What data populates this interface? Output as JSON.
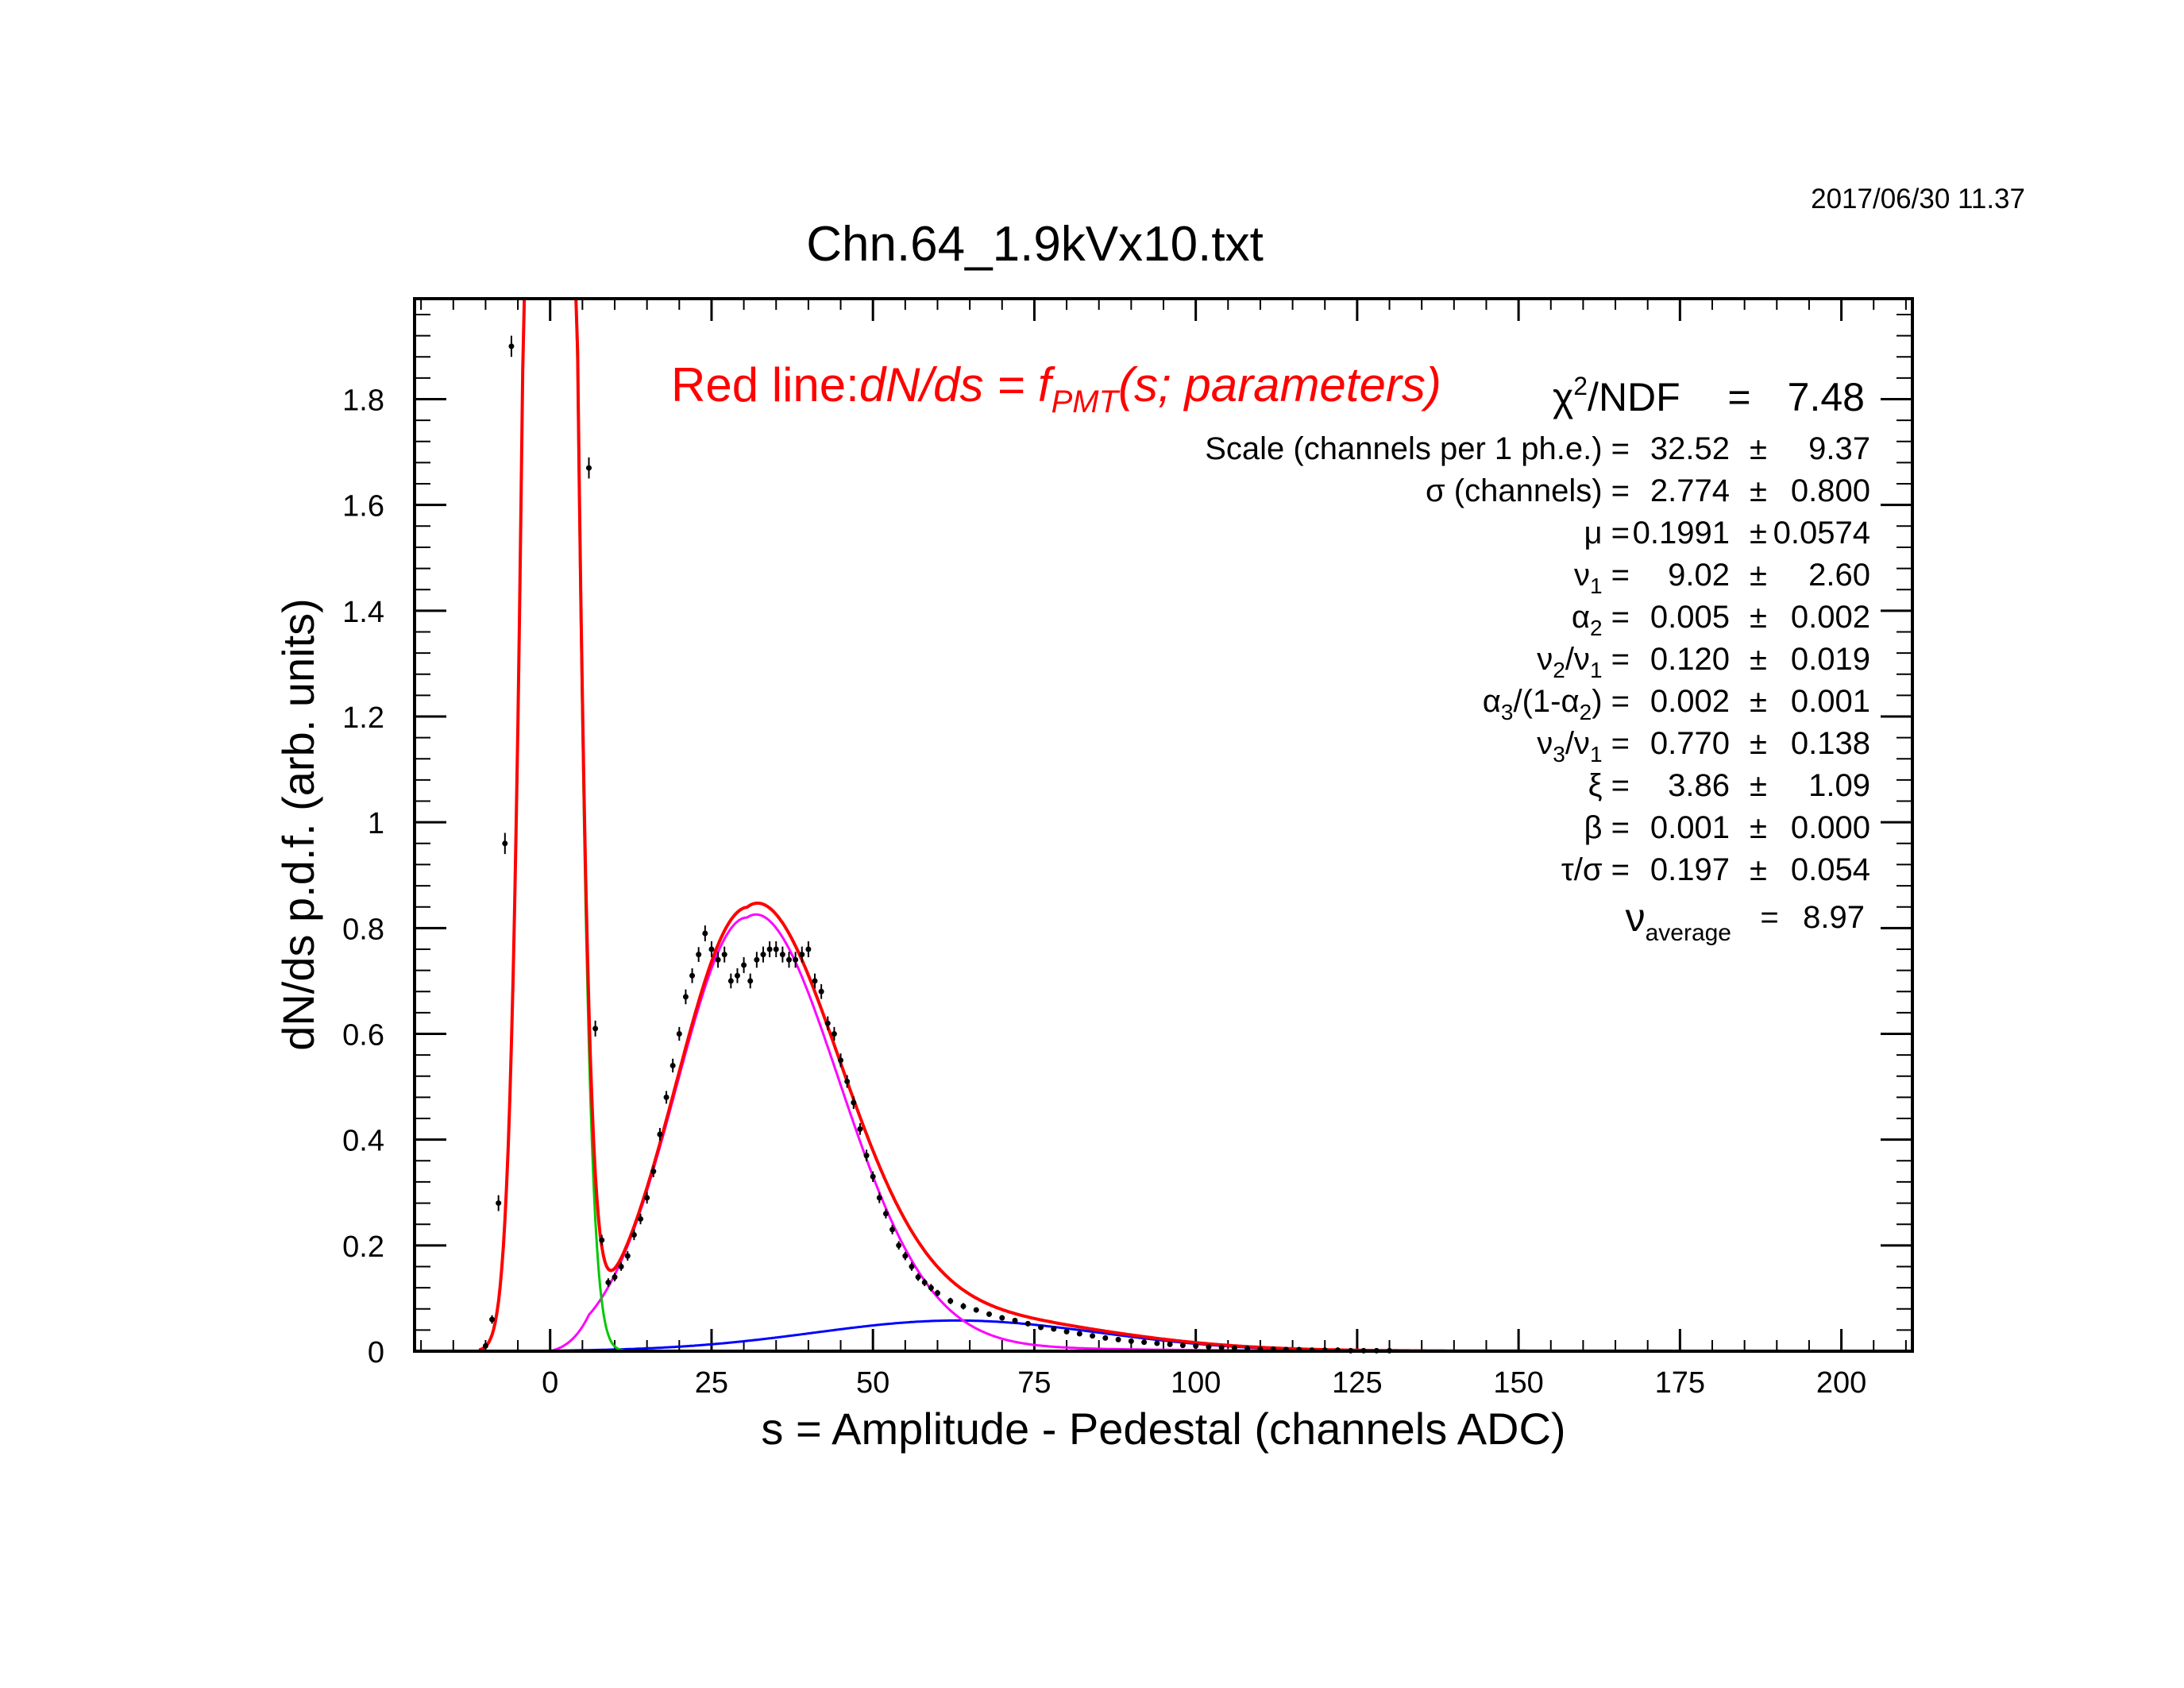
{
  "datestamp": "2017/06/30   11.37",
  "chart_data": {
    "type": "scatter",
    "title": "Chn.64_1.9kVx10.txt",
    "xlabel": "s = Amplitude - Pedestal (channels ADC)",
    "ylabel": "dN/ds p.d.f. (arb. units)",
    "xlim": [
      -21,
      211
    ],
    "ylim": [
      0,
      1.99
    ],
    "x_ticks": [
      "0",
      "25",
      "50",
      "75",
      "100",
      "125",
      "150",
      "175",
      "200"
    ],
    "y_ticks": [
      "0",
      "0.2",
      "0.4",
      "0.6",
      "0.8",
      "1",
      "1.2",
      "1.4",
      "1.6",
      "1.8"
    ],
    "grid": false,
    "legend_text": {
      "plain": "Red line:",
      "eq_lhs": "dN/ds = f",
      "eq_sub": "PMT",
      "eq_rhs": "(s; parameters)"
    },
    "chi2": {
      "label": "/NDF",
      "symbol": "χ",
      "sup": "2",
      "eq": "=",
      "value": "7.48"
    },
    "fit_parameters": [
      {
        "name": "Scale (channels per 1 ph.e.) =",
        "value": "32.52",
        "pm": "±",
        "error": "9.37"
      },
      {
        "name": "σ (channels) =",
        "value": "2.774",
        "pm": "±",
        "error": "0.800"
      },
      {
        "name": "μ  =",
        "value": "0.1991",
        "pm": "±",
        "error": "0.0574"
      },
      {
        "name": "ν",
        "sub": "1",
        "tail": " =",
        "value": "9.02",
        "pm": "±",
        "error": "2.60"
      },
      {
        "name": "α",
        "sub": "2",
        "tail": " =",
        "value": "0.005",
        "pm": "±",
        "error": "0.002"
      },
      {
        "name": "ν",
        "sub": "2",
        "mid": "/ν",
        "sub2": "1",
        "tail": " =",
        "value": "0.120",
        "pm": "±",
        "error": "0.019"
      },
      {
        "name": "α",
        "sub": "3",
        "mid": "/(1-α",
        "sub2": "2",
        "tail": ") =",
        "value": "0.002",
        "pm": "±",
        "error": "0.001"
      },
      {
        "name": "ν",
        "sub": "3",
        "mid": "/ν",
        "sub2": "1",
        "tail": " =",
        "value": "0.770",
        "pm": "±",
        "error": "0.138"
      },
      {
        "name": "ξ  =",
        "value": "3.86",
        "pm": "±",
        "error": "1.09"
      },
      {
        "name": "β  =",
        "value": "0.001",
        "pm": "±",
        "error": "0.000"
      },
      {
        "name": "τ/σ =",
        "value": "0.197",
        "pm": "±",
        "error": "0.054"
      }
    ],
    "nu_average": {
      "symbol": "ν",
      "sub": "average",
      "eq": "=",
      "value": "8.97"
    },
    "colors": {
      "total_fit": "#ff0000",
      "pedestal": "#00c800",
      "one_pe": "#ff00ff",
      "multi_pe": "#0000ff",
      "data": "#000000"
    },
    "series": [
      {
        "type": "scatter_errorbars",
        "x": [
          -10,
          -9,
          -8,
          -7,
          -6,
          6,
          7,
          8,
          9,
          10,
          11,
          12,
          13,
          14,
          15,
          16,
          17,
          18,
          19,
          20,
          21,
          22,
          23,
          24,
          25,
          26,
          27,
          28,
          29,
          30,
          31,
          32,
          33,
          34,
          35,
          36,
          37,
          38,
          39,
          40,
          41,
          42,
          43,
          44,
          45,
          46,
          47,
          48,
          49,
          50,
          51,
          52,
          53,
          54,
          55,
          56,
          57,
          58,
          59,
          60,
          62,
          64,
          66,
          68,
          70,
          72,
          74,
          76,
          78,
          80,
          82,
          84,
          86,
          88,
          90,
          92,
          94,
          96,
          98,
          100,
          102,
          104,
          106,
          108,
          110,
          112,
          114,
          116,
          118,
          120,
          122,
          124,
          126,
          128,
          130
        ],
        "y": [
          0.01,
          0.06,
          0.28,
          0.96,
          1.9,
          1.67,
          0.61,
          0.21,
          0.13,
          0.14,
          0.16,
          0.18,
          0.22,
          0.25,
          0.29,
          0.34,
          0.41,
          0.48,
          0.54,
          0.6,
          0.67,
          0.71,
          0.75,
          0.79,
          0.76,
          0.74,
          0.75,
          0.7,
          0.71,
          0.73,
          0.7,
          0.74,
          0.75,
          0.76,
          0.76,
          0.75,
          0.74,
          0.74,
          0.75,
          0.76,
          0.7,
          0.68,
          0.62,
          0.6,
          0.55,
          0.51,
          0.47,
          0.42,
          0.37,
          0.33,
          0.29,
          0.26,
          0.23,
          0.2,
          0.18,
          0.16,
          0.14,
          0.13,
          0.12,
          0.11,
          0.095,
          0.085,
          0.078,
          0.07,
          0.063,
          0.058,
          0.052,
          0.045,
          0.042,
          0.037,
          0.033,
          0.029,
          0.025,
          0.022,
          0.019,
          0.017,
          0.015,
          0.013,
          0.011,
          0.01,
          0.008,
          0.007,
          0.006,
          0.005,
          0.004,
          0.004,
          0.003,
          0.003,
          0.002,
          0.002,
          0.002,
          0.001,
          0.001,
          0.001,
          0.001
        ],
        "yerr": [
          0.005,
          0.008,
          0.015,
          0.02,
          0.02,
          0.02,
          0.015,
          0.01,
          0.008,
          0.008,
          0.008,
          0.009,
          0.01,
          0.01,
          0.011,
          0.011,
          0.012,
          0.012,
          0.013,
          0.013,
          0.014,
          0.014,
          0.014,
          0.015,
          0.015,
          0.015,
          0.015,
          0.014,
          0.014,
          0.015,
          0.014,
          0.015,
          0.015,
          0.015,
          0.015,
          0.015,
          0.015,
          0.015,
          0.015,
          0.015,
          0.014,
          0.014,
          0.013,
          0.013,
          0.013,
          0.012,
          0.012,
          0.011,
          0.011,
          0.01,
          0.01,
          0.009,
          0.009,
          0.008,
          0.008,
          0.008,
          0.007,
          0.007,
          0.007,
          0.006,
          0.006,
          0.006,
          0.005,
          0.005,
          0.005,
          0.005,
          0.004,
          0.004,
          0.004,
          0.004,
          0.004,
          0.003,
          0.003,
          0.003,
          0.003,
          0.003,
          0.002,
          0.002,
          0.002,
          0.002,
          0.002,
          0.002,
          0.002,
          0.002,
          0.001,
          0.001,
          0.001,
          0.001,
          0.001,
          0.001,
          0.001,
          0.001,
          0.001,
          0.001,
          0.001
        ]
      }
    ],
    "fit_components": {
      "pedestal": {
        "amplitude": 6.0,
        "center": 0.0,
        "sigma": 2.774,
        "clip_top": 1.99
      },
      "one_pe": {
        "amplitude": 0.82,
        "mode": 30.5,
        "width_left": 11.0,
        "width_right": 14.0,
        "tail_amp": 0.05,
        "tail_decay": 22.0
      },
      "multi_pe": {
        "amplitude": 0.058,
        "center": 63.0,
        "sigma": 22.0
      }
    }
  }
}
